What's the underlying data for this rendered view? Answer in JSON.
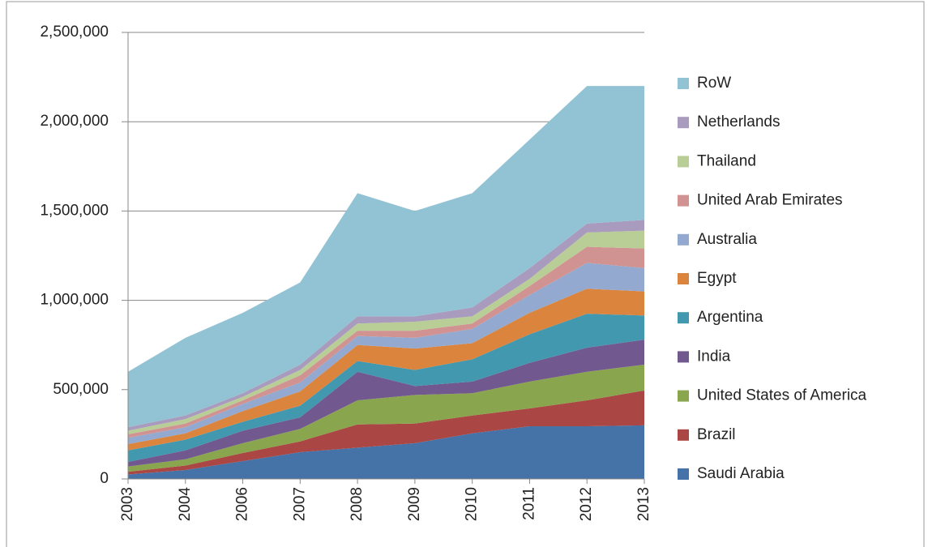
{
  "chart_data": {
    "type": "stacked_area",
    "categories": [
      "2003",
      "2004",
      "2006",
      "2007",
      "2008",
      "2009",
      "2010",
      "2011",
      "2012",
      "2013"
    ],
    "ylim": [
      0,
      2500000
    ],
    "yticks": [
      0,
      {
        "value": 500000,
        "label": "500,000"
      },
      {
        "value": 1000000,
        "label": "1,000,000"
      },
      {
        "value": 1500000,
        "label": "1,500,000"
      },
      {
        "value": 2000000,
        "label": "2,000,000"
      },
      {
        "value": 2500000,
        "label": "2,500,000"
      }
    ],
    "grid": true,
    "legend": "right",
    "series": [
      {
        "name": "Saudi Arabia",
        "color": "#4572a7",
        "values": [
          25000,
          50000,
          100000,
          150000,
          175000,
          200000,
          255000,
          295000,
          295000,
          300000
        ]
      },
      {
        "name": "Brazil",
        "color": "#aa4643",
        "values": [
          15000,
          25000,
          45000,
          60000,
          130000,
          110000,
          100000,
          100000,
          145000,
          195000
        ]
      },
      {
        "name": "United States of America",
        "color": "#89a54e",
        "values": [
          30000,
          35000,
          55000,
          70000,
          135000,
          160000,
          125000,
          150000,
          160000,
          145000
        ]
      },
      {
        "name": "India",
        "color": "#71588f",
        "values": [
          25000,
          50000,
          70000,
          65000,
          160000,
          50000,
          65000,
          105000,
          135000,
          140000
        ]
      },
      {
        "name": "Argentina",
        "color": "#4198af",
        "values": [
          65000,
          60000,
          50000,
          65000,
          60000,
          90000,
          125000,
          160000,
          190000,
          135000
        ]
      },
      {
        "name": "Egypt",
        "color": "#db843d",
        "values": [
          35000,
          35000,
          60000,
          80000,
          90000,
          120000,
          90000,
          120000,
          140000,
          135000
        ]
      },
      {
        "name": "Australia",
        "color": "#93a9cf",
        "values": [
          35000,
          35000,
          40000,
          50000,
          50000,
          60000,
          80000,
          100000,
          145000,
          130000
        ]
      },
      {
        "name": "United Arab Emirates",
        "color": "#d19392",
        "values": [
          20000,
          20000,
          20000,
          40000,
          30000,
          40000,
          30000,
          50000,
          90000,
          110000
        ]
      },
      {
        "name": "Thailand",
        "color": "#b9cd96",
        "values": [
          20000,
          25000,
          20000,
          30000,
          40000,
          50000,
          40000,
          40000,
          80000,
          100000
        ]
      },
      {
        "name": "Netherlands",
        "color": "#a99bbd",
        "values": [
          20000,
          20000,
          20000,
          30000,
          40000,
          30000,
          50000,
          60000,
          50000,
          60000
        ]
      },
      {
        "name": "RoW",
        "color": "#92c3d4",
        "values": [
          310000,
          435000,
          450000,
          460000,
          690000,
          590000,
          640000,
          720000,
          770000,
          750000
        ]
      }
    ]
  }
}
